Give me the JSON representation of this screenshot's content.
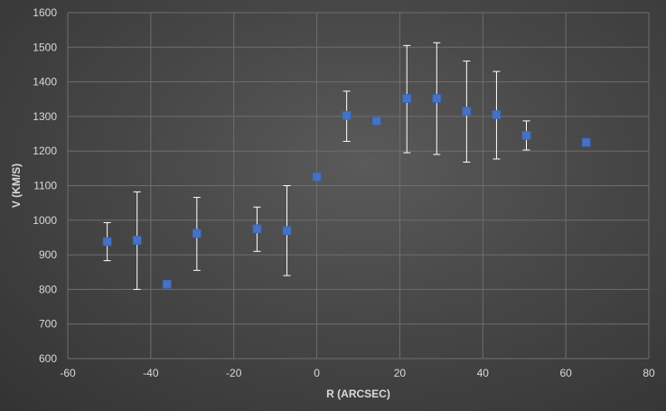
{
  "chart_data": {
    "type": "scatter",
    "title": "",
    "xlabel": "R (ARCSEC)",
    "ylabel": "V (KM/S)",
    "xlim": [
      -60,
      80
    ],
    "ylim": [
      600,
      1600
    ],
    "x_ticks": [
      -60,
      -40,
      -20,
      0,
      20,
      40,
      60,
      80
    ],
    "y_ticks": [
      600,
      700,
      800,
      900,
      1000,
      1100,
      1200,
      1300,
      1400,
      1500,
      1600
    ],
    "grid": true,
    "legend": "none",
    "marker": "square",
    "marker_color": "#4472c4",
    "errorbar_color": "#ffffff",
    "gridline_color": "#6e6e6e",
    "series": [
      {
        "points": [
          {
            "x": -50.5,
            "y": 938,
            "err_low": 883,
            "err_high": 993
          },
          {
            "x": -43.3,
            "y": 942,
            "err_low": 800,
            "err_high": 1082
          },
          {
            "x": -36.1,
            "y": 815
          },
          {
            "x": -28.9,
            "y": 962,
            "err_low": 855,
            "err_high": 1066
          },
          {
            "x": -14.4,
            "y": 975,
            "err_low": 910,
            "err_high": 1038
          },
          {
            "x": -7.2,
            "y": 970,
            "err_low": 840,
            "err_high": 1100
          },
          {
            "x": 0,
            "y": 1125
          },
          {
            "x": 7.2,
            "y": 1303,
            "err_low": 1228,
            "err_high": 1373
          },
          {
            "x": 14.4,
            "y": 1287
          },
          {
            "x": 21.7,
            "y": 1352,
            "err_low": 1195,
            "err_high": 1505
          },
          {
            "x": 28.9,
            "y": 1352,
            "err_low": 1190,
            "err_high": 1513
          },
          {
            "x": 36.1,
            "y": 1315,
            "err_low": 1168,
            "err_high": 1460
          },
          {
            "x": 43.3,
            "y": 1305,
            "err_low": 1177,
            "err_high": 1430
          },
          {
            "x": 50.5,
            "y": 1245,
            "err_low": 1203,
            "err_high": 1287
          },
          {
            "x": 64.9,
            "y": 1225
          }
        ]
      }
    ]
  }
}
